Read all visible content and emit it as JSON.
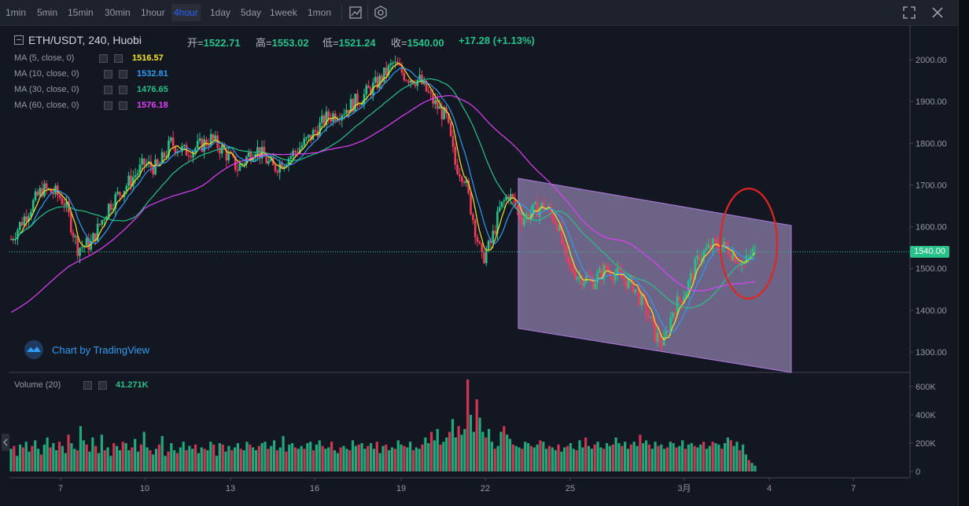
{
  "toolbar": {
    "timeframes": [
      "1min",
      "5min",
      "15min",
      "30min",
      "1hour",
      "4hour",
      "1day",
      "5day",
      "1week",
      "1mon"
    ],
    "active": "4hour"
  },
  "header": {
    "symbol": "ETH/USDT, 240, Huobi",
    "open_label": "开=",
    "open": "1522.71",
    "high_label": "高=",
    "high": "1553.02",
    "low_label": "低=",
    "low": "1521.24",
    "close_label": "收=",
    "close": "1540.00",
    "change": "+17.28 (+1.13%)"
  },
  "indicators": [
    {
      "label": "MA (5, close, 0)",
      "value": "1516.57",
      "color": "#f5e61f"
    },
    {
      "label": "MA (10, close, 0)",
      "value": "1532.81",
      "color": "#2e9cf0"
    },
    {
      "label": "MA (30, close, 0)",
      "value": "1476.65",
      "color": "#26c28a"
    },
    {
      "label": "MA (60, close, 0)",
      "value": "1576.18",
      "color": "#e040fb"
    }
  ],
  "volume": {
    "label": "Volume (20)",
    "value": "41.271K"
  },
  "watermark": "Chart by TradingView",
  "current_price": "1540.00",
  "colors": {
    "up": "#26c28a",
    "down": "#f23c5a",
    "bg": "#131722",
    "channel": "#b8a3d9",
    "circle": "#e0261f"
  },
  "chart_data": {
    "type": "candlestick",
    "title": "ETH/USDT, 240, Huobi",
    "price_axis": {
      "ticks": [
        2000,
        1900,
        1800,
        1700,
        1600,
        1500,
        1400,
        1300
      ],
      "labels": [
        "2000.00",
        "1900.00",
        "1800.00",
        "1700.00",
        "1600.00",
        "1500.00",
        "1400.00",
        "1300.00"
      ],
      "range": [
        1263,
        2074
      ]
    },
    "volume_axis": {
      "ticks": [
        600,
        400,
        200,
        0
      ],
      "labels": [
        "600K",
        "400K",
        "200K",
        "0"
      ],
      "range": [
        0,
        650
      ]
    },
    "time_axis": {
      "labels": [
        "7",
        "10",
        "13",
        "16",
        "19",
        "22",
        "25",
        "3月",
        "4",
        "7"
      ]
    },
    "volume_k": [
      160,
      180,
      110,
      190,
      170,
      210,
      140,
      180,
      220,
      160,
      120,
      190,
      240,
      170,
      200,
      150,
      210,
      180,
      130,
      260,
      200,
      160,
      150,
      320,
      220,
      190,
      140,
      240,
      180,
      130,
      260,
      150,
      170,
      110,
      200,
      180,
      150,
      210,
      200,
      150,
      170,
      230,
      140,
      190,
      280,
      170,
      150,
      120,
      160,
      190,
      250,
      110,
      140,
      200,
      150,
      130,
      170,
      210,
      150,
      180,
      160,
      190,
      130,
      170,
      160,
      150,
      210,
      190,
      110,
      200,
      190,
      140,
      180,
      150,
      170,
      200,
      160,
      150,
      210,
      190,
      170,
      150,
      180,
      200,
      210,
      160,
      180,
      220,
      150,
      170,
      250,
      140,
      190,
      200,
      170,
      160,
      180,
      160,
      200,
      210,
      150,
      190,
      220,
      180,
      160,
      170,
      210,
      150,
      130,
      170,
      180,
      160,
      150,
      220,
      180,
      190,
      200,
      160,
      180,
      200,
      160,
      210,
      130,
      180,
      190,
      150,
      170,
      160,
      220,
      190,
      180,
      170,
      210,
      150,
      170,
      160,
      190,
      240,
      200,
      280,
      220,
      300,
      190,
      210,
      240,
      280,
      370,
      240,
      320,
      260,
      300,
      650,
      400,
      280,
      510,
      380,
      280,
      240,
      300,
      210,
      160,
      180,
      280,
      320,
      260,
      230,
      190,
      180,
      170,
      160,
      210,
      200,
      180,
      170,
      190,
      220,
      210,
      160,
      180,
      170,
      150,
      190,
      140,
      170,
      180,
      200,
      160,
      150,
      220,
      170,
      240,
      180,
      160,
      190,
      210,
      170,
      160,
      200,
      180,
      190,
      240,
      200,
      180,
      210,
      160,
      190,
      210,
      180,
      260,
      200,
      220,
      190,
      160,
      210,
      180,
      190,
      160,
      170,
      210,
      200,
      170,
      180,
      220,
      160,
      190,
      200,
      180,
      170,
      190,
      210,
      160,
      180,
      210,
      200,
      190,
      160,
      200,
      240,
      220,
      180,
      210,
      150,
      190,
      120,
      80,
      60,
      40
    ]
  }
}
